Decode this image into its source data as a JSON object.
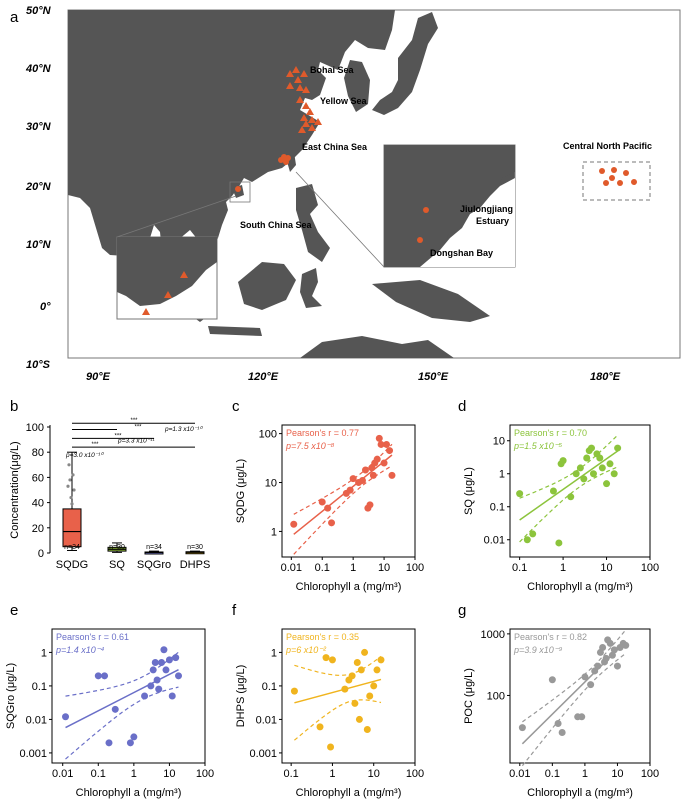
{
  "figure": {
    "panel_labels": [
      "a",
      "b",
      "c",
      "d",
      "e",
      "f",
      "g"
    ],
    "map": {
      "lat_ticks": [
        "50°N",
        "40°N",
        "30°N",
        "20°N",
        "10°N",
        "0°",
        "10°S"
      ],
      "lon_ticks": [
        "90°E",
        "120°E",
        "150°E",
        "180°E"
      ],
      "sea_labels": [
        "Bohai Sea",
        "Yellow Sea",
        "East China Sea",
        "South China Sea",
        "Central North Pacific",
        "Jiulongjiang",
        "Estuary",
        "Dongshan Bay"
      ],
      "colors": {
        "land": "#555555",
        "sea": "#ffffff",
        "site": "#e05a2b"
      }
    }
  },
  "chart_data": [
    {
      "panel": "b",
      "type": "box",
      "categories": [
        "SQDG",
        "SQ",
        "SQGro",
        "DHPS"
      ],
      "n_labels": [
        "n=34",
        "n=30",
        "n=34",
        "n=30"
      ],
      "ylabel": "Concentration(μg/L)",
      "ylim": [
        0,
        100
      ],
      "yticks": [
        "0",
        "20",
        "40",
        "60",
        "80",
        "100"
      ],
      "boxes": [
        {
          "min": 2,
          "q1": 5,
          "median": 17,
          "q3": 35,
          "max": 80,
          "color": "#e8614a"
        },
        {
          "min": 0.5,
          "q1": 1.5,
          "median": 3,
          "q3": 4.5,
          "max": 8,
          "color": "#9ccc3c"
        },
        {
          "min": 0.1,
          "q1": 0.3,
          "median": 0.5,
          "q3": 0.8,
          "max": 1.5,
          "color": "#7a7fd0"
        },
        {
          "min": 0.1,
          "q1": 0.3,
          "median": 0.6,
          "q3": 1,
          "max": 1.5,
          "color": "#f0c020"
        }
      ],
      "annotations": [
        "***",
        "***",
        "***",
        "***",
        "p=3.0 x10⁻¹⁰",
        "p=3.3 x10⁻¹¹",
        "p=1.3 x10⁻¹⁰"
      ]
    },
    {
      "panel": "c",
      "type": "scatter",
      "log": true,
      "ylabel": "SQDG (μg/L)",
      "xlabel": "Chlorophyll a (mg/m³)",
      "r_text": "Pearson's r = 0.77",
      "p_text": "p=7.5 x10⁻⁸",
      "color": "#e8614a",
      "xticks": [
        "0.01",
        "0.1",
        "1",
        "10",
        "100"
      ],
      "yticks": [
        "1",
        "10",
        "100"
      ],
      "points": [
        [
          0.012,
          1.4
        ],
        [
          0.1,
          4
        ],
        [
          0.15,
          3
        ],
        [
          0.2,
          1.5
        ],
        [
          0.6,
          6
        ],
        [
          0.8,
          7
        ],
        [
          1,
          12
        ],
        [
          1.5,
          10
        ],
        [
          2,
          11
        ],
        [
          2.5,
          18
        ],
        [
          3,
          3
        ],
        [
          3.5,
          3.5
        ],
        [
          4,
          20
        ],
        [
          4.5,
          14
        ],
        [
          5,
          25
        ],
        [
          6,
          30
        ],
        [
          7,
          80
        ],
        [
          8,
          60
        ],
        [
          10,
          25
        ],
        [
          12,
          60
        ],
        [
          15,
          45
        ],
        [
          18,
          14
        ]
      ],
      "xlim": [
        0.005,
        100
      ],
      "ylim": [
        0.3,
        150
      ]
    },
    {
      "panel": "d",
      "type": "scatter",
      "log": true,
      "ylabel": "SQ (μg/L)",
      "xlabel": "Chlorophyll a (mg/m³)",
      "r_text": "Pearson's r = 0.70",
      "p_text": "p=1.5 x10⁻⁵",
      "color": "#8cc43c",
      "xticks": [
        "0.1",
        "1",
        "10",
        "100"
      ],
      "yticks": [
        "0.01",
        "0.1",
        "1",
        "10"
      ],
      "points": [
        [
          0.1,
          0.25
        ],
        [
          0.15,
          0.01
        ],
        [
          0.2,
          0.015
        ],
        [
          0.6,
          0.3
        ],
        [
          0.8,
          0.008
        ],
        [
          0.9,
          2
        ],
        [
          1,
          2.5
        ],
        [
          1.5,
          0.2
        ],
        [
          2,
          1
        ],
        [
          2.5,
          1.5
        ],
        [
          3,
          0.7
        ],
        [
          3.5,
          3
        ],
        [
          4,
          5
        ],
        [
          4.5,
          6
        ],
        [
          5,
          1
        ],
        [
          6,
          4
        ],
        [
          7,
          3
        ],
        [
          8,
          1.5
        ],
        [
          10,
          0.5
        ],
        [
          12,
          2
        ],
        [
          15,
          1
        ],
        [
          18,
          6
        ]
      ],
      "xlim": [
        0.06,
        100
      ],
      "ylim": [
        0.003,
        30
      ]
    },
    {
      "panel": "e",
      "type": "scatter",
      "log": true,
      "ylabel": "SQGro (μg/L)",
      "xlabel": "Chlorophyll a (mg/m³)",
      "r_text": "Pearson's r = 0.61",
      "p_text": "p=1.4 x10⁻⁴",
      "color": "#6a6fc8",
      "xticks": [
        "0.01",
        "0.1",
        "1",
        "10",
        "100"
      ],
      "yticks": [
        "0.001",
        "0.01",
        "0.1",
        "1"
      ],
      "points": [
        [
          0.012,
          0.012
        ],
        [
          0.1,
          0.2
        ],
        [
          0.15,
          0.2
        ],
        [
          0.2,
          0.002
        ],
        [
          0.3,
          0.02
        ],
        [
          0.8,
          0.002
        ],
        [
          1,
          0.003
        ],
        [
          2,
          0.05
        ],
        [
          3,
          0.1
        ],
        [
          3.5,
          0.3
        ],
        [
          4,
          0.5
        ],
        [
          4.5,
          0.15
        ],
        [
          5,
          0.08
        ],
        [
          6,
          0.5
        ],
        [
          7,
          1.2
        ],
        [
          8,
          0.3
        ],
        [
          10,
          0.6
        ],
        [
          12,
          0.05
        ],
        [
          15,
          0.7
        ],
        [
          18,
          0.2
        ]
      ],
      "xlim": [
        0.005,
        100
      ],
      "ylim": [
        0.0005,
        5
      ]
    },
    {
      "panel": "f",
      "type": "scatter",
      "log": true,
      "ylabel": "DHPS (μg/L)",
      "xlabel": "Chlorophyll a (mg/m³)",
      "r_text": "Pearson's r = 0.35",
      "p_text": "p=6 x10⁻²",
      "color": "#f0b41e",
      "xticks": [
        "0.1",
        "1",
        "10",
        "100"
      ],
      "yticks": [
        "0.001",
        "0.01",
        "0.1",
        "1"
      ],
      "points": [
        [
          0.12,
          0.07
        ],
        [
          0.5,
          0.006
        ],
        [
          0.7,
          0.7
        ],
        [
          0.9,
          0.0015
        ],
        [
          1,
          0.6
        ],
        [
          2,
          0.08
        ],
        [
          2.5,
          0.15
        ],
        [
          3,
          0.2
        ],
        [
          3.5,
          0.03
        ],
        [
          4,
          0.5
        ],
        [
          4.5,
          0.01
        ],
        [
          5,
          0.3
        ],
        [
          6,
          1
        ],
        [
          7,
          0.005
        ],
        [
          8,
          0.05
        ],
        [
          10,
          0.1
        ],
        [
          12,
          0.3
        ],
        [
          15,
          0.6
        ]
      ],
      "xlim": [
        0.06,
        100
      ],
      "ylim": [
        0.0005,
        5
      ]
    },
    {
      "panel": "g",
      "type": "scatter",
      "log": true,
      "ylabel": "POC (μg/L)",
      "xlabel": "Chlorophyll a (mg/m³)",
      "r_text": "Pearson's r = 0.82",
      "p_text": "p=3.9 x10⁻⁹",
      "color": "#999999",
      "xticks": [
        "0.01",
        "0.1",
        "1",
        "10",
        "100"
      ],
      "yticks": [
        "100",
        "1000"
      ],
      "points": [
        [
          0.012,
          30
        ],
        [
          0.1,
          180
        ],
        [
          0.15,
          35
        ],
        [
          0.2,
          25
        ],
        [
          0.6,
          45
        ],
        [
          0.8,
          45
        ],
        [
          1,
          200
        ],
        [
          1.5,
          150
        ],
        [
          2,
          250
        ],
        [
          2.5,
          300
        ],
        [
          3,
          500
        ],
        [
          3.5,
          600
        ],
        [
          4,
          350
        ],
        [
          4.5,
          400
        ],
        [
          5,
          800
        ],
        [
          6,
          700
        ],
        [
          7,
          450
        ],
        [
          8,
          550
        ],
        [
          10,
          300
        ],
        [
          12,
          600
        ],
        [
          15,
          700
        ],
        [
          18,
          650
        ]
      ],
      "xlim": [
        0.005,
        100
      ],
      "ylim": [
        8,
        1200
      ]
    }
  ]
}
